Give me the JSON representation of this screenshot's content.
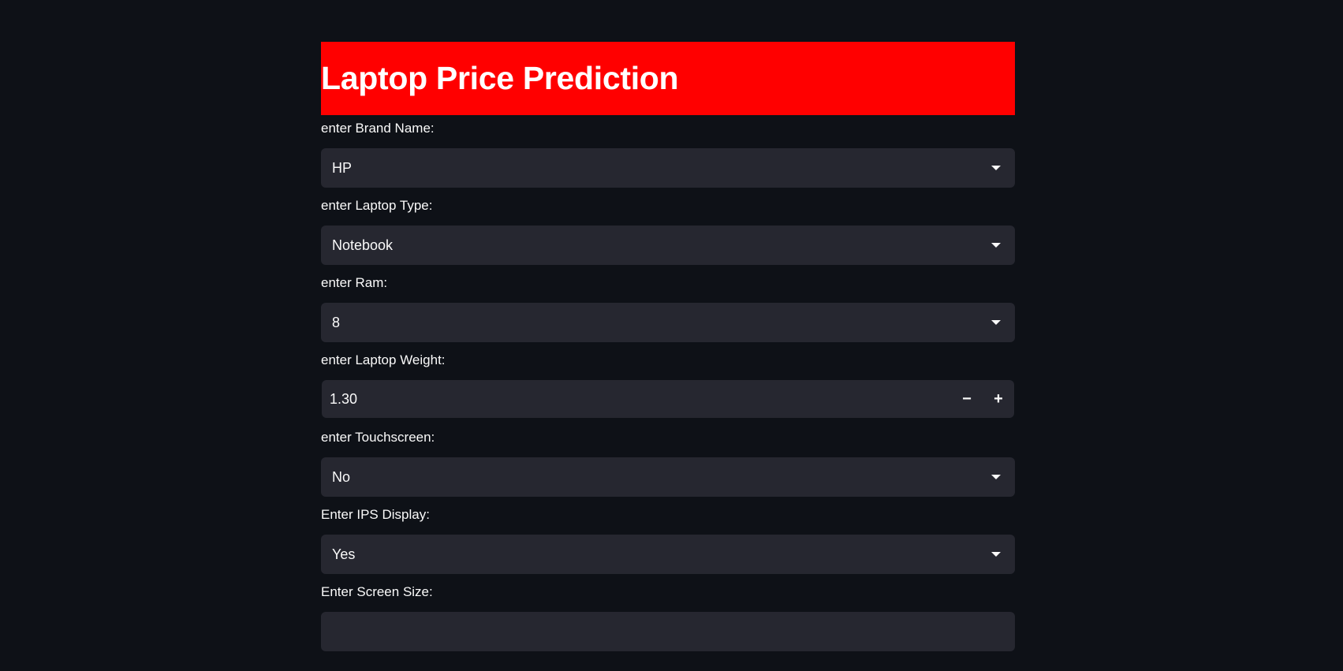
{
  "header": {
    "title": "Laptop Price Prediction",
    "banner_color": "#ff0000"
  },
  "form": {
    "brand": {
      "label": "enter Brand Name:",
      "value": "HP"
    },
    "type": {
      "label": "enter Laptop Type:",
      "value": "Notebook"
    },
    "ram": {
      "label": "enter Ram:",
      "value": "8"
    },
    "weight": {
      "label": "enter Laptop Weight:",
      "value": "1.30",
      "minus": "−",
      "plus": "+"
    },
    "touchscreen": {
      "label": "enter Touchscreen:",
      "value": "No"
    },
    "ips": {
      "label": "Enter IPS Display:",
      "value": "Yes"
    },
    "screen_size": {
      "label": "Enter Screen Size:"
    }
  },
  "theme": {
    "background": "#0e1117",
    "input_background": "#262730",
    "text": "#fafafa"
  },
  "icons": {
    "dropdown": "chevron-down-icon",
    "minus": "minus-icon",
    "plus": "plus-icon"
  }
}
